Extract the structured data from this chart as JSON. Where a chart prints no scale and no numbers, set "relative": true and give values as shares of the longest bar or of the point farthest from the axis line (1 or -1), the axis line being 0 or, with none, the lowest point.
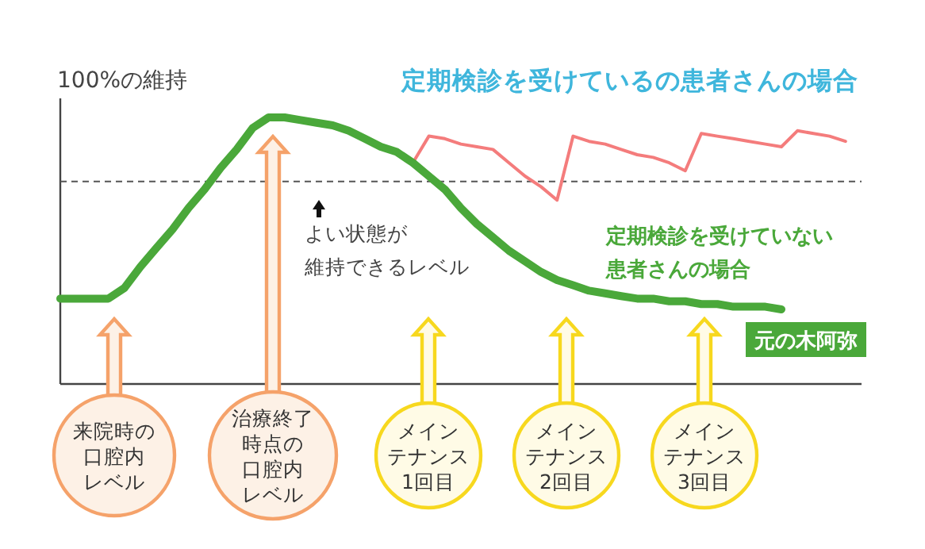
{
  "chart_data": {
    "type": "line",
    "relative": true,
    "ylabel": "100%の維持",
    "line_style": "solid",
    "categories": [
      null,
      null,
      null,
      null,
      null,
      null,
      null,
      null,
      null,
      null,
      null,
      null,
      null,
      null,
      null,
      null,
      null,
      null,
      null,
      null,
      null,
      null,
      null,
      null,
      null,
      null,
      null,
      null,
      null,
      null,
      null,
      null,
      null,
      null,
      null,
      null,
      null,
      null,
      null,
      null,
      null,
      null,
      null,
      null,
      null,
      null,
      null,
      null,
      null,
      null,
      null
    ],
    "series": [
      {
        "name": "定期検診を受けているの患者さんの場合",
        "color": "#f47c7c",
        "values": [
          null,
          null,
          null,
          null,
          null,
          null,
          null,
          null,
          null,
          null,
          null,
          null,
          null,
          null,
          null,
          null,
          null,
          null,
          null,
          null,
          null,
          null,
          0.83,
          0.93,
          0.92,
          0.9,
          0.89,
          0.88,
          0.83,
          0.78,
          0.74,
          0.69,
          0.93,
          0.91,
          0.9,
          0.88,
          0.86,
          0.85,
          0.83,
          0.8,
          0.94,
          0.93,
          0.92,
          0.91,
          0.9,
          0.89,
          0.95,
          0.94,
          0.93,
          0.91,
          null
        ]
      },
      {
        "name": "定期検診を受けていない患者さんの場合",
        "color": "#4aa83a",
        "values": [
          0.32,
          0.32,
          0.32,
          0.32,
          0.36,
          0.44,
          0.51,
          0.58,
          0.66,
          0.73,
          0.81,
          0.88,
          0.96,
          1.0,
          1.0,
          0.99,
          0.98,
          0.97,
          0.95,
          0.92,
          0.89,
          0.87,
          0.83,
          0.78,
          0.73,
          0.66,
          0.6,
          0.55,
          0.5,
          0.46,
          0.42,
          0.39,
          0.37,
          0.35,
          0.34,
          0.33,
          0.32,
          0.32,
          0.31,
          0.31,
          0.3,
          0.3,
          0.29,
          0.29,
          0.29,
          0.28,
          null,
          null,
          null,
          null,
          null
        ]
      }
    ],
    "ref_lines": [
      {
        "axis": "y",
        "value": 0.76,
        "label": "よい状態が維持できるレベル",
        "color": "#555555",
        "line_style": "dashed"
      }
    ],
    "annotations": [
      "元の木阿弥",
      "来院時の口腔内レベル",
      "治療終了時点の口腔内レベル",
      "メインテナンス1回目",
      "メインテナンス2回目",
      "メインテナンス3回目"
    ]
  }
}
